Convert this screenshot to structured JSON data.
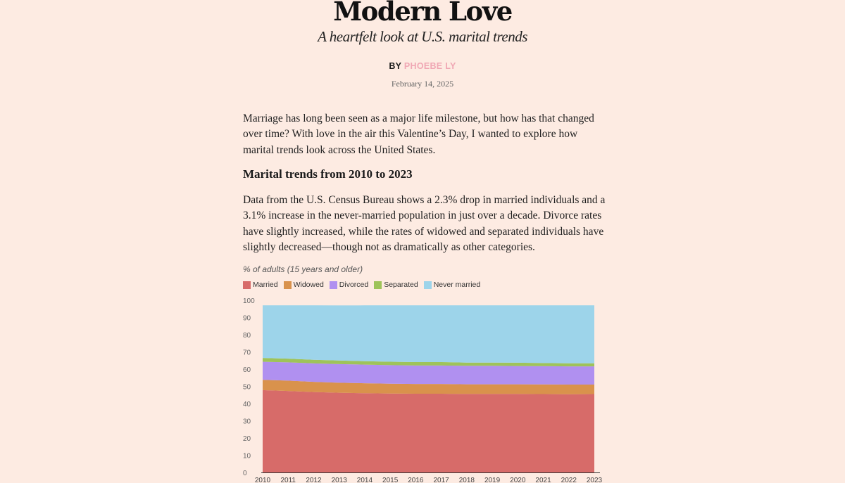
{
  "article": {
    "title": "Modern Love",
    "subtitle": "A heartfelt look at U.S. marital trends",
    "byline_prefix": "BY",
    "author": "PHOEBE LY",
    "date": "February 14, 2025",
    "intro": "Marriage has long been seen as a major life milestone, but how has that changed over time? With love in the air this Valentine’s Day, I wanted to explore how marital trends look across the United States.",
    "section_heading": "Marital trends from 2010 to 2023",
    "section_text": "Data from the U.S. Census Bureau shows a 2.3% drop in married individuals and a 3.1% increase in the never-married population in just over a decade. Divorce rates have slightly increased, while the rates of widowed and separated individuals have slightly decreased—though not as dramatically as other categories."
  },
  "chart_data": {
    "type": "area",
    "stacked": true,
    "title": "",
    "ylabel": "% of adults (15 years and older)",
    "xlabel": "",
    "ylim": [
      0,
      100
    ],
    "yticks": [
      0,
      10,
      20,
      30,
      40,
      50,
      60,
      70,
      80,
      90,
      100
    ],
    "x": [
      "2010",
      "2011",
      "2012",
      "2013",
      "2014",
      "2015",
      "2016",
      "2017",
      "2018",
      "2019",
      "2020",
      "2021",
      "2022",
      "2023"
    ],
    "legend_position": "top-left",
    "grid": false,
    "series": [
      {
        "name": "Married",
        "color": "#d76b69",
        "values": [
          47.8,
          47.3,
          46.7,
          46.3,
          46.0,
          45.8,
          45.7,
          45.7,
          45.6,
          45.6,
          45.6,
          45.5,
          45.4,
          45.5
        ]
      },
      {
        "name": "Widowed",
        "color": "#d9924c",
        "values": [
          6.0,
          6.0,
          5.9,
          5.8,
          5.8,
          5.7,
          5.7,
          5.7,
          5.6,
          5.6,
          5.6,
          5.6,
          5.6,
          5.5
        ]
      },
      {
        "name": "Divorced",
        "color": "#b090f0",
        "values": [
          10.5,
          10.6,
          10.7,
          10.8,
          10.8,
          10.8,
          10.7,
          10.7,
          10.7,
          10.7,
          10.6,
          10.6,
          10.6,
          10.6
        ]
      },
      {
        "name": "Separated",
        "color": "#9ec35a",
        "values": [
          2.2,
          2.2,
          2.1,
          2.1,
          2.0,
          2.0,
          2.0,
          2.0,
          1.9,
          1.9,
          1.9,
          1.8,
          1.8,
          1.8
        ]
      },
      {
        "name": "Never married",
        "color": "#9dd4ea",
        "values": [
          30.5,
          30.9,
          31.6,
          32.0,
          32.4,
          32.7,
          32.9,
          32.9,
          33.2,
          33.2,
          33.3,
          33.5,
          33.6,
          33.6
        ]
      }
    ]
  }
}
